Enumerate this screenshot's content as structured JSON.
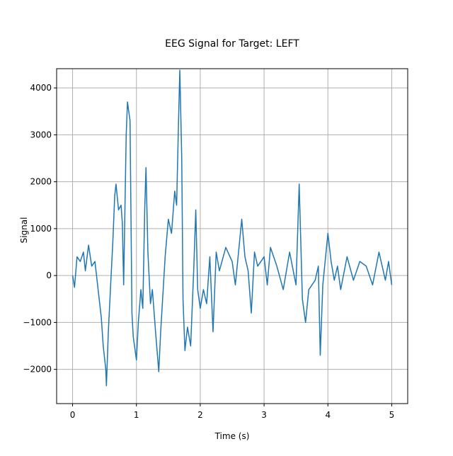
{
  "chart_data": {
    "type": "line",
    "title": "EEG Signal for Target: LEFT",
    "x_label": "Time (s)",
    "y_label": "Signal",
    "x": [
      0,
      0.03,
      0.07,
      0.12,
      0.17,
      0.2,
      0.25,
      0.3,
      0.35,
      0.4,
      0.45,
      0.48,
      0.52,
      0.53,
      0.56,
      0.6,
      0.63,
      0.66,
      0.68,
      0.72,
      0.76,
      0.78,
      0.8,
      0.84,
      0.86,
      0.9,
      0.93,
      0.95,
      1.0,
      1.03,
      1.07,
      1.1,
      1.13,
      1.15,
      1.18,
      1.22,
      1.25,
      1.3,
      1.35,
      1.38,
      1.45,
      1.5,
      1.55,
      1.6,
      1.63,
      1.66,
      1.68,
      1.71,
      1.73,
      1.76,
      1.8,
      1.85,
      1.9,
      1.93,
      1.96,
      2.0,
      2.05,
      2.1,
      2.15,
      2.2,
      2.25,
      2.3,
      2.4,
      2.5,
      2.55,
      2.6,
      2.65,
      2.7,
      2.75,
      2.8,
      2.85,
      2.9,
      3.0,
      3.05,
      3.1,
      3.2,
      3.3,
      3.4,
      3.5,
      3.55,
      3.6,
      3.65,
      3.7,
      3.8,
      3.85,
      3.88,
      3.92,
      4.0,
      4.05,
      4.1,
      4.15,
      4.2,
      4.3,
      4.4,
      4.5,
      4.6,
      4.7,
      4.8,
      4.9,
      4.95,
      5.0
    ],
    "series": [
      {
        "name": "Signal",
        "color": "#1f77b4",
        "values": [
          0,
          -250,
          400,
          300,
          500,
          100,
          650,
          200,
          300,
          -300,
          -900,
          -1500,
          -2000,
          -2350,
          -1200,
          -100,
          700,
          1700,
          1950,
          1400,
          1500,
          1100,
          -200,
          3000,
          3700,
          3300,
          -800,
          -1300,
          -1800,
          -1000,
          -300,
          -700,
          1400,
          2300,
          500,
          -600,
          -300,
          -1200,
          -2050,
          -1200,
          400,
          1200,
          900,
          1800,
          1500,
          3300,
          4380,
          2500,
          -500,
          -1600,
          -1100,
          -1500,
          200,
          1400,
          -300,
          -700,
          -300,
          -600,
          400,
          -1200,
          500,
          100,
          600,
          300,
          -200,
          500,
          1200,
          400,
          100,
          -800,
          500,
          200,
          400,
          -200,
          600,
          200,
          -300,
          500,
          -200,
          1950,
          -500,
          -1000,
          -300,
          -100,
          200,
          -1700,
          -200,
          900,
          300,
          -100,
          200,
          -300,
          400,
          -100,
          300,
          200,
          -200,
          500,
          -100,
          300,
          -200
        ]
      }
    ],
    "xlim": [
      -0.25,
      5.25
    ],
    "ylim": [
      -2730,
      4410
    ],
    "xticks": [
      0,
      1,
      2,
      3,
      4,
      5
    ],
    "yticks": [
      {
        "value": -2000,
        "label": "−2000"
      },
      {
        "value": -1000,
        "label": "−1000"
      },
      0,
      1000,
      2000,
      3000,
      4000
    ],
    "grid": true
  }
}
